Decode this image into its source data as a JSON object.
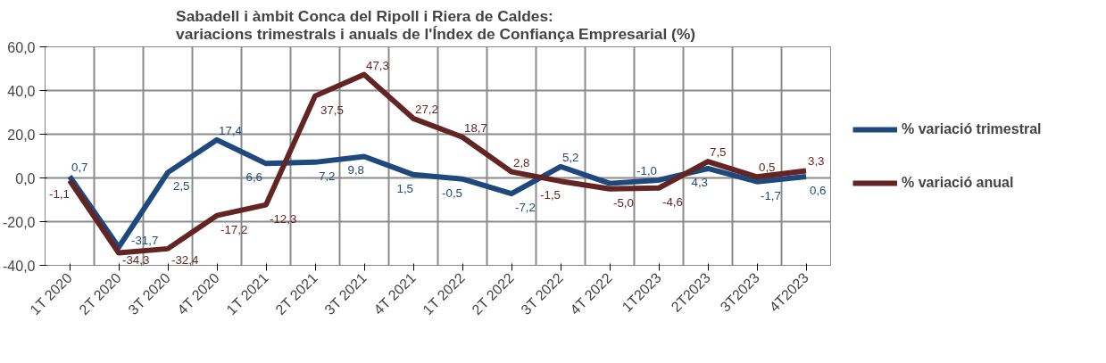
{
  "chart_data": {
    "type": "line",
    "title": "Sabadell i àmbit Conca del Ripoll i Riera  de Caldes:\nvariacions  trimestrals i anuals de l'Índex de Confiança Empresarial (%)",
    "categories": [
      "1T 2020",
      "2T 2020",
      "3T 2020",
      "4T 2020",
      "1T 2021",
      "2T 2021",
      "3T 2021",
      "4T 2021",
      "1T 2022",
      "2T 2022",
      "3T 2022",
      "4T 2022",
      "1T2023",
      "2T2023",
      "3T2023",
      "4T2023"
    ],
    "series": [
      {
        "name": "% variació trimestral",
        "color": "#1f497d",
        "values": [
          0.7,
          -31.7,
          2.5,
          17.4,
          6.6,
          7.2,
          9.8,
          1.5,
          -0.5,
          -7.2,
          5.2,
          -2.5,
          -1.0,
          4.3,
          -1.7,
          0.6
        ],
        "value_labels": [
          "0,7",
          "-31,7",
          "2,5",
          "17,4",
          "6,6",
          "7,2",
          "9,8",
          "1,5",
          "-0,5",
          "-7,2",
          "5,2",
          null,
          "-1,0",
          "4,3",
          "-1,7",
          "0,6"
        ]
      },
      {
        "name": "% variació anual",
        "color": "#632523",
        "values": [
          -1.1,
          -34.3,
          -32.4,
          -17.2,
          -12.3,
          37.5,
          47.3,
          27.2,
          18.7,
          2.8,
          -1.5,
          -5.0,
          -4.6,
          7.5,
          0.5,
          3.3
        ],
        "value_labels": [
          "-1,1",
          "-34,3",
          "-32,4",
          "-17,2",
          "-12,3",
          "37,5",
          "47,3",
          "27,2",
          "18,7",
          "2,8",
          "-1,5",
          "-5,0",
          "-4,6",
          "7,5",
          "0,5",
          "3,3"
        ]
      }
    ],
    "ylim": [
      -40,
      60
    ],
    "yticks": [
      {
        "value": -40,
        "label": "-40,0"
      },
      {
        "value": -20,
        "label": "-20,0"
      },
      {
        "value": 0,
        "label": "0,0"
      },
      {
        "value": 20,
        "label": "20,0"
      },
      {
        "value": 40,
        "label": "40,0"
      },
      {
        "value": 60,
        "label": "60,0"
      }
    ],
    "grid": true,
    "legend": "right",
    "marker": "none",
    "line_style": "solid"
  }
}
